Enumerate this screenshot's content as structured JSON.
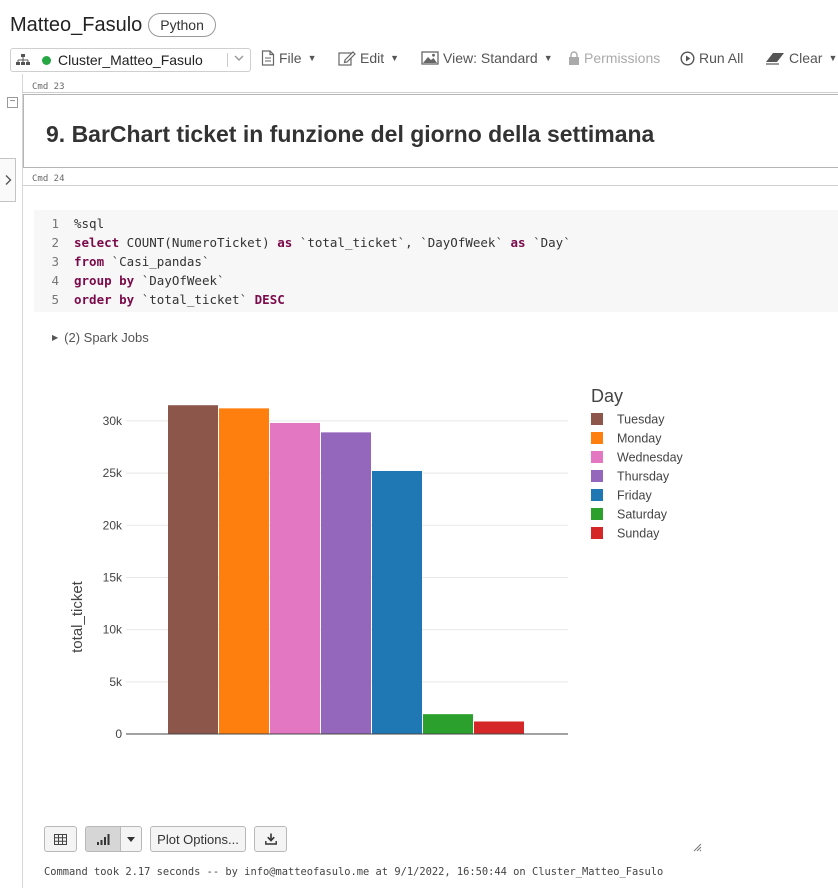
{
  "notebook": {
    "title": "Matteo_Fasulo",
    "language": "Python"
  },
  "toolbar": {
    "cluster": "Cluster_Matteo_Fasulo",
    "file": "File",
    "edit": "Edit",
    "view": "View: Standard",
    "permissions": "Permissions",
    "run_all": "Run All",
    "clear": "Clear"
  },
  "cells": [
    {
      "cmd": "Cmd 23",
      "heading": "9. BarChart ticket in funzione del giorno della settimana"
    },
    {
      "cmd": "Cmd 24"
    }
  ],
  "code": {
    "lines": [
      {
        "n": "1",
        "tokens": [
          {
            "t": "%sql",
            "k": "tx"
          }
        ]
      },
      {
        "n": "2",
        "tokens": [
          {
            "t": "select",
            "k": "kw"
          },
          {
            "t": " COUNT(NumeroTicket) ",
            "k": "tx"
          },
          {
            "t": "as",
            "k": "kw"
          },
          {
            "t": " `total_ticket`, `DayOfWeek` ",
            "k": "tx"
          },
          {
            "t": "as",
            "k": "kw"
          },
          {
            "t": " `Day`",
            "k": "tx"
          }
        ]
      },
      {
        "n": "3",
        "tokens": [
          {
            "t": "from",
            "k": "kw"
          },
          {
            "t": " `Casi_pandas`",
            "k": "tx"
          }
        ]
      },
      {
        "n": "4",
        "tokens": [
          {
            "t": "group by",
            "k": "kw"
          },
          {
            "t": " `DayOfWeek`",
            "k": "tx"
          }
        ]
      },
      {
        "n": "5",
        "tokens": [
          {
            "t": "order by",
            "k": "kw"
          },
          {
            "t": " `total_ticket` ",
            "k": "tx"
          },
          {
            "t": "DESC",
            "k": "kw"
          }
        ]
      }
    ]
  },
  "spark_jobs": "(2) Spark Jobs",
  "chart_data": {
    "type": "bar",
    "title": "",
    "xlabel": "",
    "ylabel": "total_ticket",
    "legend_title": "Day",
    "legend_position": "right",
    "grid": true,
    "ylim": [
      0,
      32000
    ],
    "yticks": [
      0,
      5000,
      10000,
      15000,
      20000,
      25000,
      30000
    ],
    "ytick_labels": [
      "0",
      "5k",
      "10k",
      "15k",
      "20k",
      "25k",
      "30k"
    ],
    "categories": [
      "Tuesday",
      "Monday",
      "Wednesday",
      "Thursday",
      "Friday",
      "Saturday",
      "Sunday"
    ],
    "values": [
      31500,
      31200,
      29800,
      28900,
      25200,
      1900,
      1200
    ],
    "colors": [
      "#8c564b",
      "#ff7f0e",
      "#e377c2",
      "#9467bd",
      "#1f77b4",
      "#2ca02c",
      "#d62728"
    ]
  },
  "footer": {
    "plot_options": "Plot Options...",
    "status": "Command took 2.17 seconds -- by info@matteofasulo.me at 9/1/2022, 16:50:44 on Cluster_Matteo_Fasulo"
  }
}
